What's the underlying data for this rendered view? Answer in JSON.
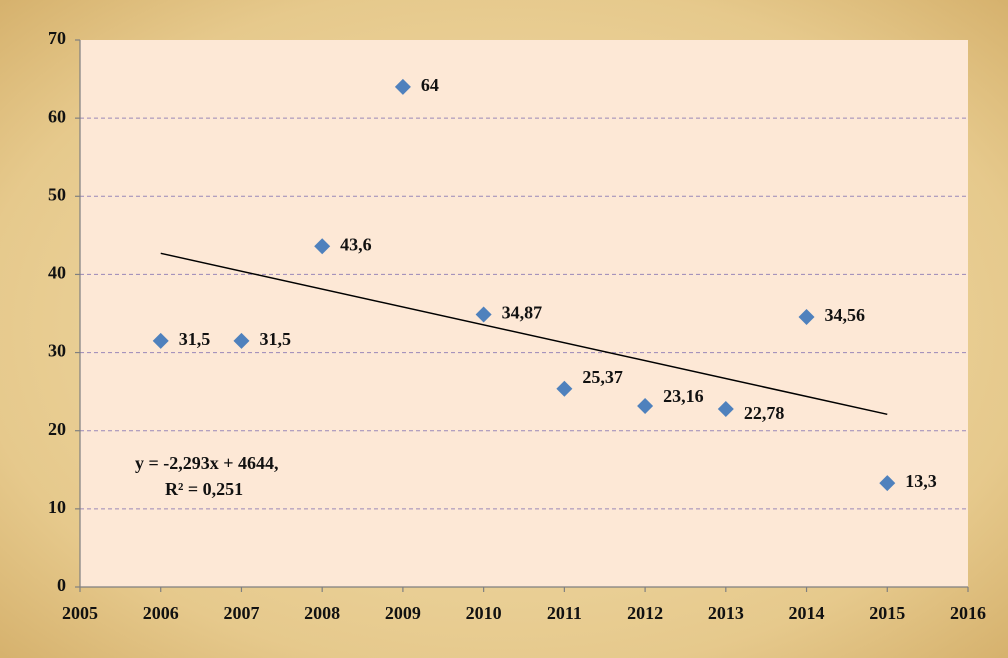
{
  "chart_data": {
    "type": "scatter",
    "x": [
      2006,
      2007,
      2008,
      2009,
      2010,
      2011,
      2012,
      2013,
      2014,
      2015
    ],
    "series": [
      {
        "color": "#4f81bd",
        "values": [
          31.5,
          31.5,
          43.6,
          64,
          34.87,
          25.37,
          23.16,
          22.78,
          34.56,
          13.3
        ],
        "value_labels": [
          "31,5",
          "31,5",
          "43,6",
          "64",
          "34,87",
          "25,37",
          "23,16",
          "22,78",
          "34,56",
          "13,3"
        ]
      }
    ],
    "trendline": {
      "color": "#000000",
      "x": [
        2006,
        2015
      ],
      "values": [
        42.7,
        22.1
      ]
    },
    "annotations": [
      "y = -2,293x + 4644,",
      "R² = 0,251"
    ],
    "xlim": [
      2005,
      2016
    ],
    "xticks": [
      2005,
      2006,
      2007,
      2008,
      2009,
      2010,
      2011,
      2012,
      2013,
      2014,
      2015,
      2016
    ],
    "ylim": [
      0,
      70
    ],
    "yticks": [
      0,
      10,
      20,
      30,
      40,
      50,
      60,
      70
    ],
    "grid": true
  }
}
